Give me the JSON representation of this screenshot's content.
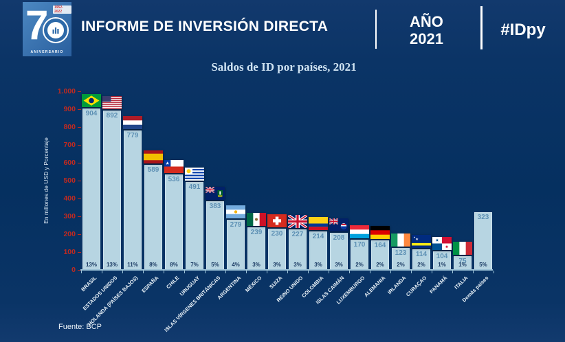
{
  "header": {
    "title": "INFORME DE INVERSIÓN DIRECTA",
    "year_label": "AÑO",
    "year_value": "2021",
    "hashtag": "#IDpy",
    "logo": {
      "number": "7",
      "anniversary": "ANIVERSARIO",
      "years": "1952-2022"
    }
  },
  "chart_data": {
    "type": "bar",
    "title": "Saldos de ID por países, 2021",
    "ylabel": "En millones de USD y Porcentaje",
    "ylim": [
      0,
      1000
    ],
    "ytick_step": 100,
    "ytick_labels": [
      "0",
      "100",
      "200",
      "300",
      "400",
      "500",
      "600",
      "700",
      "800",
      "900",
      "1.000"
    ],
    "grid": false,
    "legend": "none",
    "categories": [
      "BRASIL",
      "ESTADOS UNIDOS",
      "HOLANDA (PAÍSES BAJOS)",
      "ESPAÑA",
      "CHILE",
      "URUGUAY",
      "ISLAS VÍRGENES BRITÁNICAS",
      "ARGENTINA",
      "MÉXICO",
      "SUIZA",
      "REINO UNIDO",
      "COLOMBIA",
      "ISLAS CAIMÁN",
      "LUXEMBURGO",
      "ALEMANIA",
      "IRLANDA",
      "CURAÇAO",
      "PANAMÁ",
      "ITALIA",
      "Demás países"
    ],
    "values": [
      904,
      892,
      779,
      589,
      536,
      491,
      383,
      279,
      239,
      230,
      227,
      214,
      208,
      170,
      164,
      123,
      114,
      104,
      75,
      323
    ],
    "percent_labels": [
      "13%",
      "13%",
      "11%",
      "8%",
      "8%",
      "7%",
      "5%",
      "4%",
      "3%",
      "3%",
      "3%",
      "3%",
      "3%",
      "2%",
      "2%",
      "2%",
      "2%",
      "1%",
      "1%",
      "5%"
    ],
    "flags": [
      "brazil",
      "usa",
      "netherlands",
      "spain",
      "chile",
      "uruguay",
      "bvi",
      "argentina",
      "mexico",
      "switzerland",
      "uk",
      "colombia",
      "cayman",
      "luxembourg",
      "germany",
      "ireland",
      "curacao",
      "panama",
      "italy",
      null
    ],
    "bar_color": "#b7d5e2",
    "value_label_color": "#5d90b4",
    "percent_label_color": "#15355f",
    "ytick_color": "#bf2a20",
    "background_color": "#053060"
  },
  "footer": {
    "source": "Fuente: BCP"
  }
}
